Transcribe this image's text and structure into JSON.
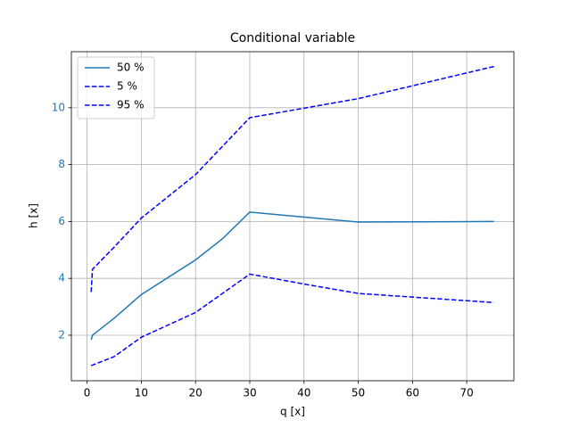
{
  "chart_data": {
    "type": "line",
    "title": "Conditional variable",
    "x_label": "q [x]",
    "y_label": "h [x]",
    "series": [
      {
        "name": "50 %",
        "color": "#1f77b4",
        "linestyle": "solid",
        "x": [
          0.75,
          1,
          5,
          10,
          20,
          25,
          30,
          50,
          75
        ],
        "values": [
          1.84,
          2.0,
          2.6,
          3.43,
          4.65,
          5.4,
          6.33,
          5.98,
          6.0
        ]
      },
      {
        "name": "5 %",
        "color": "#0000ff",
        "linestyle": "dashed",
        "x": [
          0.75,
          5,
          10,
          20,
          30,
          40,
          50,
          75
        ],
        "values": [
          0.93,
          1.25,
          1.93,
          2.8,
          4.15,
          3.8,
          3.47,
          3.15
        ]
      },
      {
        "name": "95 %",
        "color": "#0000ff",
        "linestyle": "dashed",
        "x": [
          0.75,
          1,
          5,
          10,
          20,
          30,
          50,
          75
        ],
        "values": [
          3.52,
          4.32,
          5.1,
          6.12,
          7.65,
          9.65,
          10.32,
          11.45
        ]
      }
    ],
    "xlim": [
      -2.9,
      78.7
    ],
    "ylim": [
      0.4,
      11.97
    ],
    "xticks": [
      0,
      10,
      20,
      30,
      40,
      50,
      60,
      70
    ],
    "yticks": [
      2,
      4,
      6,
      8,
      10
    ],
    "ytick_color": "#1f77b4",
    "grid": true,
    "legend": "upper-left"
  }
}
